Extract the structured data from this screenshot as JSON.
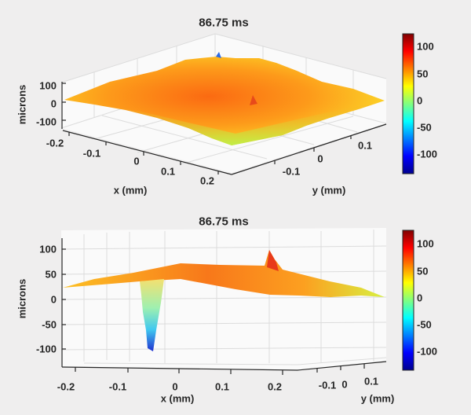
{
  "chart_data": [
    {
      "type": "surface",
      "title": "86.75 ms",
      "xlabel": "x (mm)",
      "ylabel": "y (mm)",
      "zlabel": "microns",
      "view": "oblique from above",
      "xticks": [
        "-0.2",
        "-0.1",
        "0",
        "0.1",
        "0.2"
      ],
      "yticks": [
        "-0.1",
        "0",
        "0.1"
      ],
      "zticks": [
        "100",
        "0",
        "-100"
      ],
      "xlim": [
        -0.22,
        0.22
      ],
      "ylim": [
        -0.15,
        0.15
      ],
      "zlim": [
        -130,
        120
      ],
      "colormap": "jet",
      "colorbar": {
        "ticks": [
          "100",
          "50",
          "0",
          "-50",
          "-100"
        ],
        "range": [
          -130,
          120
        ]
      },
      "features": {
        "surface_mean_height_microns": 40,
        "spike_peak_microns": 100,
        "trough_min_microns": -120
      }
    },
    {
      "type": "surface",
      "title": "86.75 ms",
      "xlabel": "x (mm)",
      "ylabel": "y (mm)",
      "zlabel": "microns",
      "view": "side, low elevation",
      "xticks": [
        "-0.2",
        "-0.1",
        "0",
        "0.1",
        "0.2"
      ],
      "yticks": [
        "-0.1",
        "0",
        "0.1"
      ],
      "zticks": [
        "100",
        "50",
        "0",
        "-50",
        "-100"
      ],
      "xlim": [
        -0.22,
        0.22
      ],
      "ylim": [
        -0.15,
        0.15
      ],
      "zlim": [
        -130,
        120
      ],
      "colormap": "jet",
      "colorbar": {
        "ticks": [
          "100",
          "50",
          "0",
          "-50",
          "-100"
        ],
        "range": [
          -130,
          120
        ]
      },
      "features": {
        "surface_mean_height_microns": 40,
        "spike_peak_microns": 100,
        "trough_min_microns": -120
      }
    }
  ]
}
